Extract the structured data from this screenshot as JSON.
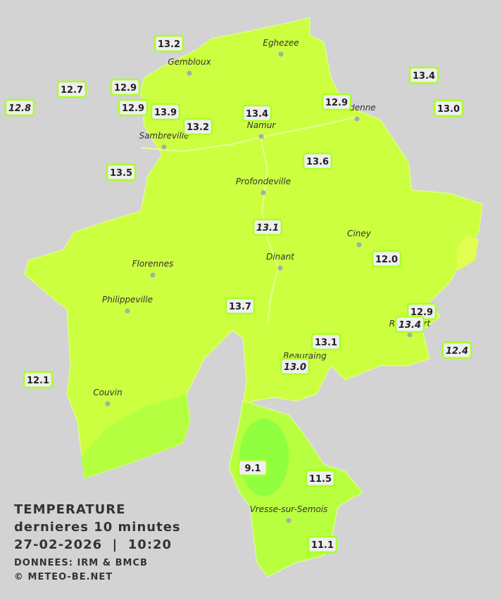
{
  "title": {
    "line1": "TEMPERATURE",
    "line2": "dernieres 10 minutes",
    "line3": "27-02-2026  |  10:20",
    "line4": "DONNEES: IRM & BMCB",
    "line5": "© METEO-BE.NET"
  },
  "cities": [
    "Eghezee",
    "Gembloux",
    "Andenne",
    "Namur",
    "Sambreville",
    "Profondeville",
    "Ciney",
    "Dinant",
    "Florennes",
    "Philippeville",
    "Rochefort",
    "Beauraing",
    "Couvin",
    "Vresse-sur-Semois"
  ],
  "stations": [
    {
      "value": 12.8
    },
    {
      "value": 12.7
    },
    {
      "value": 12.9
    },
    {
      "value": 13.2
    },
    {
      "value": 12.9
    },
    {
      "value": 13.9
    },
    {
      "value": 13.2
    },
    {
      "value": 13.4
    },
    {
      "value": 12.9
    },
    {
      "value": 13.4
    },
    {
      "value": 13,
      "label": "13.0"
    },
    {
      "value": 13.5
    },
    {
      "value": 13.6
    },
    {
      "value": 13.1
    },
    {
      "value": 12,
      "label": "12.0"
    },
    {
      "value": 13.7
    },
    {
      "value": 12.9
    },
    {
      "value": 13.4
    },
    {
      "value": 13.1
    },
    {
      "value": 12.4
    },
    {
      "value": 13,
      "label": "13.0"
    },
    {
      "value": 12.1
    },
    {
      "value": 9.1
    },
    {
      "value": 11.5
    },
    {
      "value": 11.1
    }
  ]
}
